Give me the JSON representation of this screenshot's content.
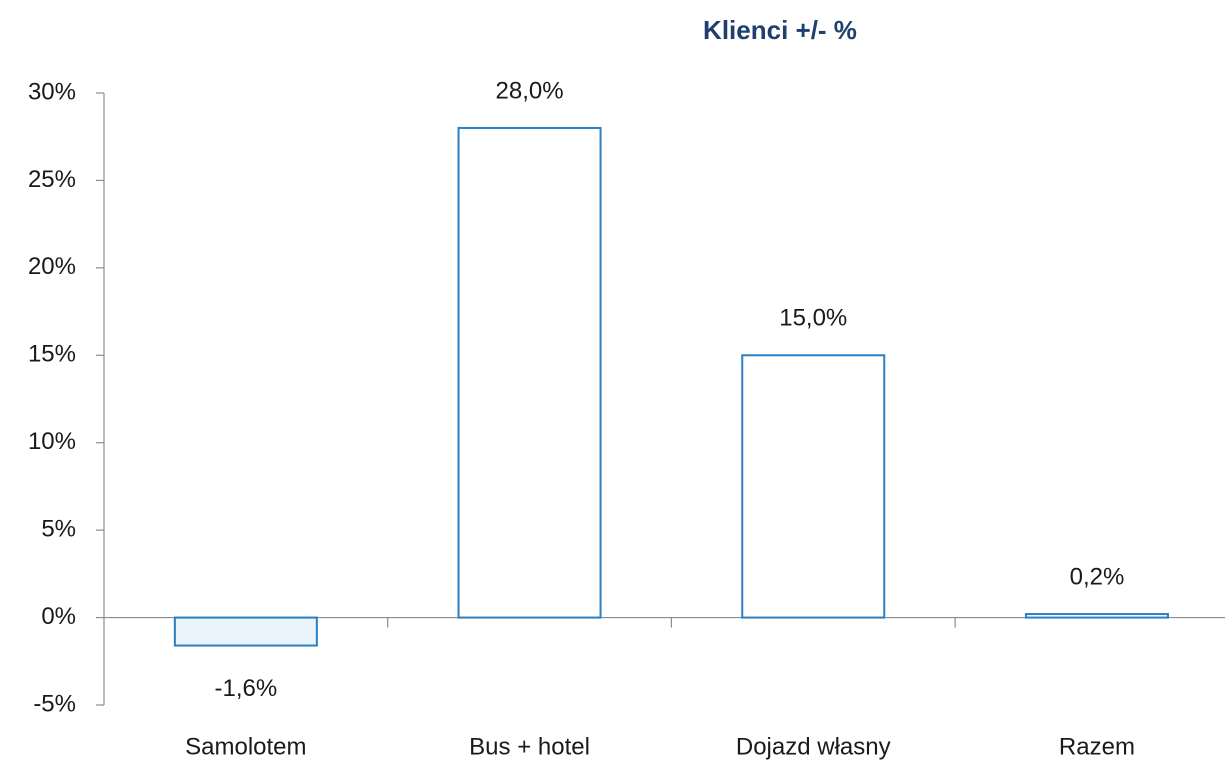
{
  "chart_data": {
    "type": "bar",
    "title": "Klienci +/- %",
    "categories": [
      "Samolotem",
      "Bus + hotel",
      "Dojazd własny",
      "Razem"
    ],
    "values": [
      -1.6,
      28.0,
      15.0,
      0.2
    ],
    "value_labels": [
      "-1,6%",
      "28,0%",
      "15,0%",
      "0,2%"
    ],
    "color": "#2a7fc0",
    "ylim": [
      -5,
      30
    ],
    "yticks": [
      {
        "value": -5,
        "label": "-5%"
      },
      {
        "value": 0,
        "label": "0%"
      },
      {
        "value": 5,
        "label": "5%"
      },
      {
        "value": 10,
        "label": "10%"
      },
      {
        "value": 15,
        "label": "15%"
      },
      {
        "value": 20,
        "label": "20%"
      },
      {
        "value": 25,
        "label": "25%"
      },
      {
        "value": 30,
        "label": "30%"
      }
    ],
    "grid": false
  }
}
